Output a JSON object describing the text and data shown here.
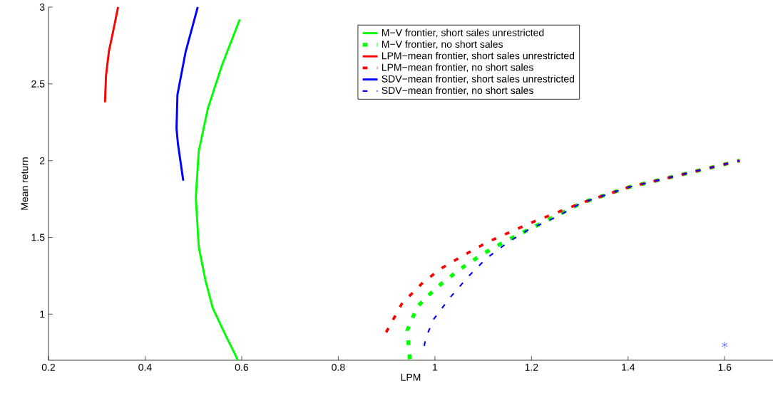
{
  "chart_data": {
    "type": "line",
    "xlabel": "LPM",
    "ylabel": "Mean return",
    "xlim": [
      0.2,
      1.7
    ],
    "ylim": [
      0.7,
      3
    ],
    "xticks": [
      0.2,
      0.4,
      0.6,
      0.8,
      1,
      1.2,
      1.4,
      1.6
    ],
    "yticks": [
      1,
      1.5,
      2,
      2.5,
      3
    ],
    "legend": "top",
    "grid": false,
    "series": [
      {
        "name": "M−V frontier, short sales unrestricted",
        "color": "#00ff00",
        "line_style": "solid",
        "x": [
          0.596,
          0.559,
          0.53,
          0.511,
          0.505,
          0.511,
          0.525,
          0.54,
          0.567,
          0.586,
          0.592
        ],
        "values": [
          2.92,
          2.62,
          2.34,
          2.06,
          1.76,
          1.44,
          1.22,
          1.04,
          0.86,
          0.74,
          0.7
        ]
      },
      {
        "name": "M−V frontier, no short sales",
        "color": "#00ff00",
        "line_style": "dashed",
        "x": [
          0.948,
          0.943,
          0.964,
          1.003,
          1.052,
          1.101,
          1.15,
          1.183,
          1.232,
          1.303,
          1.401,
          1.516,
          1.631
        ],
        "values": [
          0.707,
          0.896,
          1.051,
          1.172,
          1.293,
          1.396,
          1.482,
          1.534,
          1.611,
          1.724,
          1.827,
          1.913,
          2.0
        ]
      },
      {
        "name": "LPM−mean frontier, short sales unrestricted",
        "color": "#ff0000",
        "line_style": "solid",
        "x": [
          0.344,
          0.335,
          0.325,
          0.319,
          0.317
        ],
        "values": [
          3.0,
          2.86,
          2.71,
          2.55,
          2.38
        ]
      },
      {
        "name": "LPM−mean frontier, no short sales",
        "color": "#ff0000",
        "line_style": "dashed",
        "x": [
          0.899,
          0.932,
          0.975,
          1.014,
          1.057,
          1.106,
          1.155,
          1.205,
          1.303,
          1.401,
          1.516,
          1.631
        ],
        "values": [
          0.882,
          1.07,
          1.206,
          1.3,
          1.379,
          1.465,
          1.534,
          1.603,
          1.724,
          1.827,
          1.913,
          2.0
        ]
      },
      {
        "name": "SDV−mean frontier, short sales unrestricted",
        "color": "#0000ff",
        "line_style": "solid",
        "x": [
          0.509,
          0.484,
          0.467,
          0.465,
          0.468,
          0.479
        ],
        "values": [
          3.0,
          2.71,
          2.43,
          2.21,
          2.11,
          1.87
        ]
      },
      {
        "name": "SDV−mean frontier, no short sales",
        "color": "#0000ff",
        "line_style": "dashed",
        "x": [
          0.978,
          0.981,
          0.997,
          1.03,
          1.068,
          1.106,
          1.15,
          1.194,
          1.254,
          1.303,
          1.401,
          1.516,
          1.631
        ],
        "values": [
          0.793,
          0.845,
          0.965,
          1.103,
          1.241,
          1.362,
          1.465,
          1.551,
          1.637,
          1.724,
          1.827,
          1.913,
          2.0
        ]
      },
      {
        "type": "scatter",
        "color": "#0000ff",
        "marker": "cross",
        "x": [
          1.6
        ],
        "values": [
          0.8
        ]
      }
    ]
  }
}
